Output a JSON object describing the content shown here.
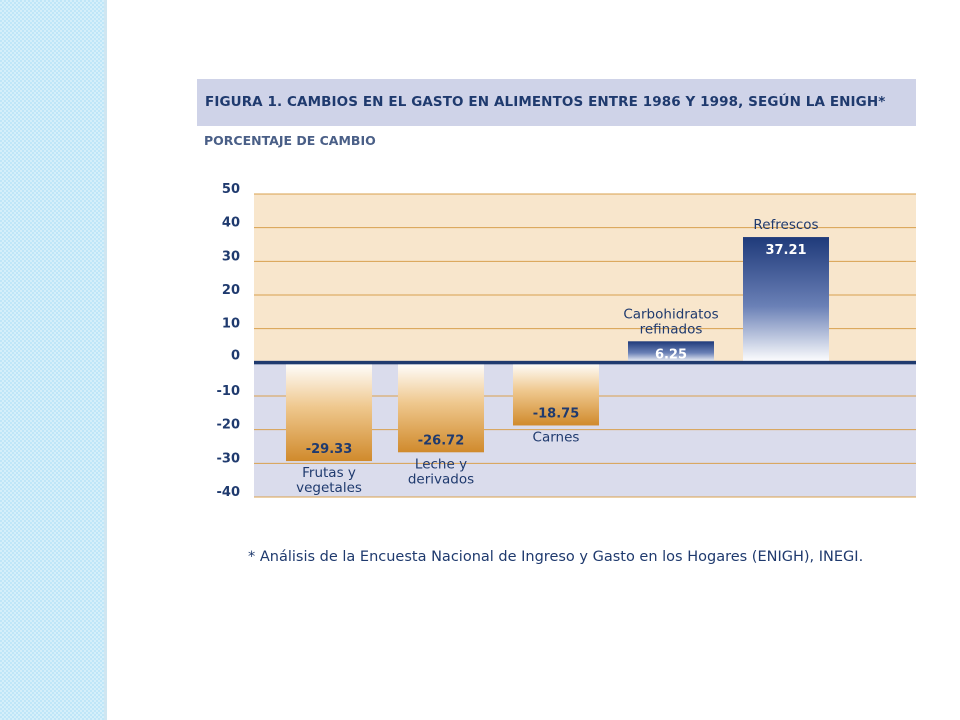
{
  "figure": {
    "title": "FIGURA 1. CAMBIOS EN EL GASTO EN ALIMENTOS ENTRE 1986 Y 1998, SEGÚN LA ENIGH*",
    "subtitle": "PORCENTAJE DE CAMBIO",
    "footnote": "* Análisis de la Encuesta Nacional de Ingreso y Gasto en los Hogares (ENIGH), INEGI."
  },
  "colors": {
    "positive_region": "#f8e6cc",
    "negative_region": "#dadcec",
    "grid_line": "#d9a04e",
    "zero_line": "#1f3a6e",
    "positive_bar_top": "#1f3a7a",
    "negative_bar_bottom": "#d08a2c",
    "label_text": "#1f3a6e"
  },
  "chart_data": {
    "type": "bar",
    "categories": [
      "Frutas y vegetales",
      "Leche y derivados",
      "Carnes",
      "Carbohidratos refinados",
      "Refrescos"
    ],
    "category_label_lines": [
      [
        "Frutas y",
        "vegetales"
      ],
      [
        "Leche y",
        "derivados"
      ],
      [
        "Carnes"
      ],
      [
        "Carbohidratos",
        "refinados"
      ],
      [
        "Refrescos"
      ]
    ],
    "values": [
      -29.33,
      -26.72,
      -18.75,
      6.25,
      37.21
    ],
    "value_labels": [
      "-29.33",
      "-26.72",
      "-18.75",
      "6.25",
      "37.21"
    ],
    "ylim": [
      -40,
      50
    ],
    "yticks": [
      50,
      40,
      30,
      20,
      10,
      0,
      -10,
      -20,
      -30,
      -40
    ],
    "ylabel": "PORCENTAJE DE CAMBIO",
    "grid": true
  }
}
